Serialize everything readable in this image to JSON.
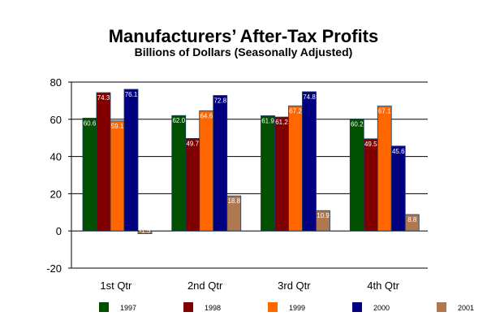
{
  "chart_data": {
    "type": "bar",
    "title": "Manufacturers’ After-Tax Profits",
    "subtitle": "Billions of Dollars (Seasonally Adjusted)",
    "categories": [
      "1st Qtr",
      "2nd Qtr",
      "3rd Qtr",
      "4th Qtr"
    ],
    "ylim": [
      -20,
      80
    ],
    "yticks": [
      -20,
      0,
      20,
      40,
      60,
      80
    ],
    "grid": true,
    "legend_position": "bottom",
    "series": [
      {
        "name": "1997",
        "color": "#005000",
        "values": [
          60.6,
          62.0,
          61.9,
          60.2
        ],
        "labels": [
          "60.6",
          "62.0",
          "61.9",
          "60.2"
        ]
      },
      {
        "name": "1998",
        "color": "#800000",
        "values": [
          74.3,
          49.7,
          61.2,
          49.5
        ],
        "labels": [
          "74.3",
          "49.7",
          "61.2",
          "49.5"
        ]
      },
      {
        "name": "1999",
        "color": "#ff6600",
        "values": [
          59.1,
          64.6,
          67.2,
          67.1
        ],
        "labels": [
          "59.1",
          "64.6",
          "67.2",
          "67.1"
        ]
      },
      {
        "name": "2000",
        "color": "#000080",
        "values": [
          76.1,
          72.8,
          74.8,
          45.6
        ],
        "labels": [
          "76.1",
          "72.8",
          "74.8",
          "45.6"
        ]
      },
      {
        "name": "2001",
        "color": "#b07850",
        "values": [
          -1.5,
          18.8,
          10.9,
          8.8
        ],
        "labels": [
          "-1.5",
          "18.8",
          "10.9",
          "8.8"
        ]
      }
    ]
  }
}
